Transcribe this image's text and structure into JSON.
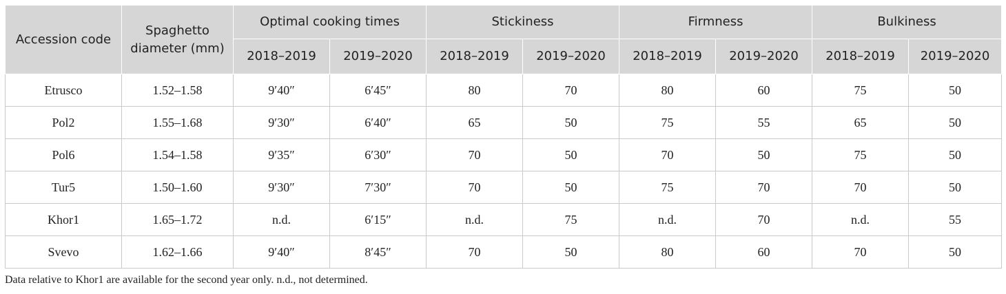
{
  "table": {
    "headers": {
      "accession": "Accession code",
      "diameter": "Spaghetto diameter (mm)",
      "groups": [
        "Optimal cooking times",
        "Stickiness",
        "Firmness",
        "Bulkiness"
      ],
      "years": [
        "2018–2019",
        "2019–2020"
      ]
    },
    "rows": [
      [
        "Etrusco",
        "1.52–1.58",
        "9′40″",
        "6′45″",
        "80",
        "70",
        "80",
        "60",
        "75",
        "50"
      ],
      [
        "Pol2",
        "1.55–1.68",
        "9′30″",
        "6′40″",
        "65",
        "50",
        "75",
        "55",
        "65",
        "50"
      ],
      [
        "Pol6",
        "1.54–1.58",
        "9′35″",
        "6′30″",
        "70",
        "50",
        "70",
        "50",
        "75",
        "50"
      ],
      [
        "Tur5",
        "1.50–1.60",
        "9′30″",
        "7′30″",
        "70",
        "50",
        "75",
        "70",
        "70",
        "50"
      ],
      [
        "Khor1",
        "1.65–1.72",
        "n.d.",
        "6′15″",
        "n.d.",
        "75",
        "n.d.",
        "70",
        "n.d.",
        "55"
      ],
      [
        "Svevo",
        "1.62–1.66",
        "9′40″",
        "8′45″",
        "70",
        "50",
        "80",
        "60",
        "70",
        "50"
      ]
    ]
  },
  "footnote": "Data relative to Khor1 are available for the second year only. n.d., not determined."
}
